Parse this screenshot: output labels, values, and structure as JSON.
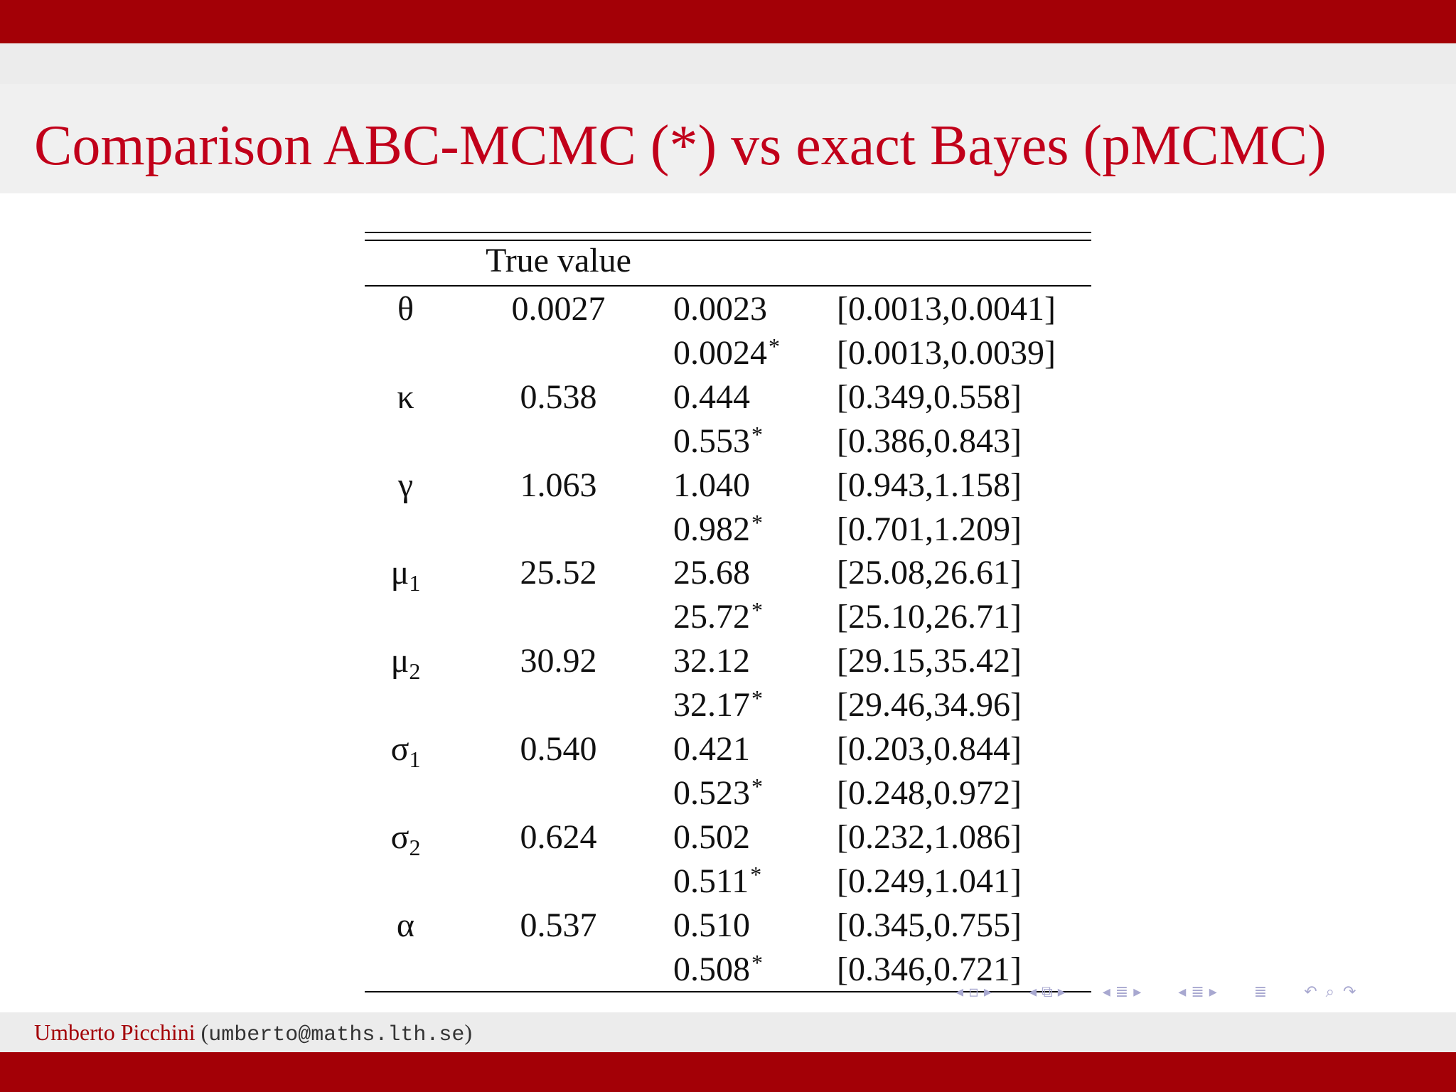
{
  "slide": {
    "title": "Comparison ABC-MCMC (*) vs exact Bayes (pMCMC)"
  },
  "table": {
    "header": {
      "true_value": "True value"
    },
    "rows": [
      {
        "symbol": "θ",
        "sub": "",
        "true_value": "0.0027",
        "est1": "0.0023",
        "ci1": "[0.0013,0.0041]",
        "est2": "0.0024",
        "ci2": "[0.0013,0.0039]"
      },
      {
        "symbol": "κ",
        "sub": "",
        "true_value": "0.538",
        "est1": "0.444",
        "ci1": "[0.349,0.558]",
        "est2": "0.553",
        "ci2": "[0.386,0.843]"
      },
      {
        "symbol": "γ",
        "sub": "",
        "true_value": "1.063",
        "est1": "1.040",
        "ci1": "[0.943,1.158]",
        "est2": "0.982",
        "ci2": "[0.701,1.209]"
      },
      {
        "symbol": "μ",
        "sub": "1",
        "true_value": "25.52",
        "est1": "25.68",
        "ci1": "[25.08,26.61]",
        "est2": "25.72",
        "ci2": "[25.10,26.71]"
      },
      {
        "symbol": "μ",
        "sub": "2",
        "true_value": "30.92",
        "est1": "32.12",
        "ci1": "[29.15,35.42]",
        "est2": "32.17",
        "ci2": "[29.46,34.96]"
      },
      {
        "symbol": "σ",
        "sub": "1",
        "true_value": "0.540",
        "est1": "0.421",
        "ci1": "[0.203,0.844]",
        "est2": "0.523",
        "ci2": "[0.248,0.972]"
      },
      {
        "symbol": "σ",
        "sub": "2",
        "true_value": "0.624",
        "est1": "0.502",
        "ci1": "[0.232,1.086]",
        "est2": "0.511",
        "ci2": "[0.249,1.041]"
      },
      {
        "symbol": "α",
        "sub": "",
        "true_value": "0.537",
        "est1": "0.510",
        "ci1": "[0.345,0.755]",
        "est2": "0.508",
        "ci2": "[0.346,0.721]"
      }
    ],
    "abc_marker": "*"
  },
  "footer": {
    "author": "Umberto Picchini",
    "email": "umberto@maths.lth.se",
    "open_paren": "(",
    "close_paren": ")"
  },
  "nav": {
    "icons": [
      "nav-first-icon",
      "nav-frame-icon",
      "nav-subsection-icon",
      "nav-section-icon",
      "nav-align-icon",
      "nav-undo-icon",
      "nav-search-icon"
    ]
  }
}
